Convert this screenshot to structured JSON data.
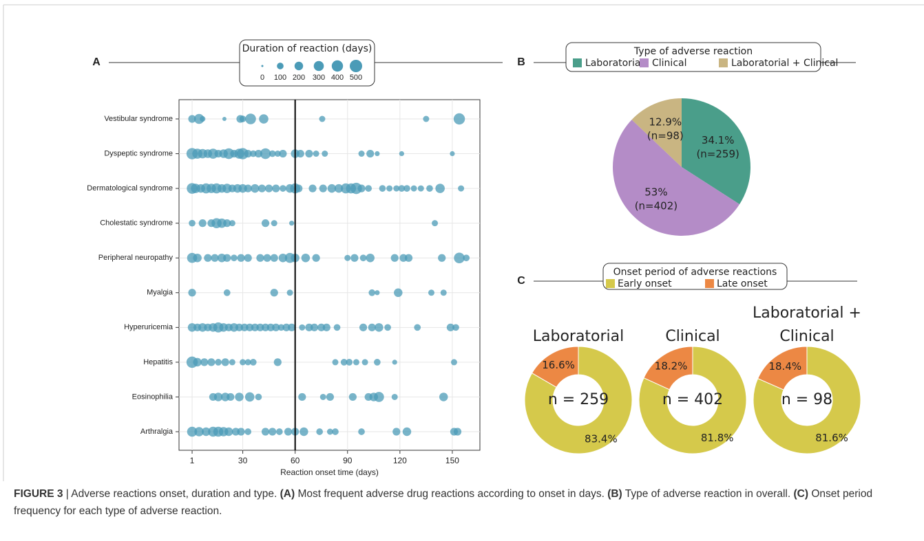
{
  "chart_data": [
    {
      "type": "bubble",
      "panel": "A",
      "legend_title": "Duration of reaction (days)",
      "size_ticks": [
        0,
        100,
        200,
        300,
        400,
        500
      ],
      "categories": [
        "Vestibular syndrome",
        "Dyspeptic syndrome",
        "Dermatological syndrome",
        "Cholestatic syndrome",
        "Peripheral neuropathy",
        "Myalgia",
        "Hyperuricemia",
        "Hepatitis",
        "Eosinophilia",
        "Arthralgia"
      ],
      "rows": [
        {
          "x": [
            1,
            5,
            7,
            19.5,
            28.6,
            30,
            34.5,
            42,
            75.5,
            135,
            154
          ],
          "sizes": [
            150,
            300,
            60,
            20,
            150,
            100,
            350,
            250,
            80,
            80,
            400
          ]
        },
        {
          "x": [
            1,
            4,
            7,
            10,
            13,
            16,
            19,
            22,
            25,
            28,
            30,
            33,
            36,
            39,
            43,
            47,
            50,
            53,
            60,
            63,
            68,
            72,
            77,
            98,
            103,
            107,
            121,
            150
          ],
          "sizes": [
            400,
            300,
            250,
            200,
            300,
            150,
            200,
            350,
            150,
            300,
            400,
            150,
            100,
            150,
            350,
            100,
            80,
            150,
            200,
            150,
            150,
            80,
            80,
            80,
            150,
            40,
            40,
            40
          ]
        },
        {
          "x": [
            1,
            3,
            6,
            9,
            12,
            15,
            18,
            21,
            24,
            27,
            30,
            33,
            37,
            41,
            45,
            49,
            53,
            57,
            60,
            62,
            70,
            76,
            81,
            85,
            89,
            92,
            95,
            98,
            102,
            110,
            114,
            118,
            121,
            124,
            128,
            132,
            137,
            143,
            155
          ],
          "sizes": [
            350,
            250,
            200,
            300,
            250,
            300,
            200,
            250,
            150,
            200,
            200,
            150,
            200,
            150,
            150,
            150,
            100,
            200,
            300,
            150,
            150,
            150,
            200,
            200,
            300,
            300,
            400,
            150,
            100,
            100,
            80,
            80,
            100,
            100,
            80,
            80,
            100,
            250,
            80
          ]
        },
        {
          "x": [
            1,
            7,
            12,
            15,
            18,
            21,
            24,
            43,
            48,
            58,
            140
          ],
          "sizes": [
            100,
            150,
            150,
            300,
            250,
            150,
            80,
            150,
            80,
            40,
            80
          ]
        },
        {
          "x": [
            1,
            4,
            10,
            14,
            18,
            21,
            25,
            29,
            33,
            40,
            44,
            48,
            53,
            57,
            60,
            66,
            72,
            90,
            94,
            99,
            103,
            117,
            122,
            125,
            144,
            154,
            158
          ],
          "sizes": [
            300,
            200,
            150,
            150,
            200,
            150,
            100,
            150,
            150,
            150,
            150,
            150,
            200,
            300,
            200,
            200,
            150,
            80,
            150,
            100,
            200,
            150,
            150,
            150,
            150,
            350,
            100
          ]
        },
        {
          "x": [
            1,
            21,
            48,
            57,
            104,
            107,
            119,
            138,
            145
          ],
          "sizes": [
            150,
            100,
            150,
            80,
            100,
            40,
            200,
            80,
            80
          ]
        },
        {
          "x": [
            1,
            4,
            7,
            10,
            13,
            16,
            19,
            22,
            25,
            28,
            31,
            34,
            37,
            40,
            43,
            46,
            49,
            52,
            55,
            58,
            64,
            68,
            71,
            75,
            78,
            84,
            99,
            104,
            108,
            113,
            130,
            149,
            152
          ],
          "sizes": [
            200,
            150,
            200,
            150,
            200,
            300,
            200,
            150,
            200,
            150,
            150,
            150,
            150,
            150,
            150,
            150,
            150,
            100,
            150,
            150,
            80,
            150,
            150,
            150,
            150,
            100,
            150,
            150,
            200,
            100,
            100,
            150,
            100
          ]
        },
        {
          "x": [
            1,
            4,
            8,
            12,
            16,
            20,
            24,
            30,
            33,
            36,
            50,
            83,
            88,
            91,
            95,
            100,
            107,
            117,
            151
          ],
          "sizes": [
            400,
            200,
            150,
            150,
            100,
            150,
            80,
            80,
            80,
            100,
            150,
            80,
            100,
            100,
            80,
            80,
            100,
            40,
            80
          ]
        },
        {
          "x": [
            13,
            16,
            20,
            23,
            28,
            34,
            39,
            64,
            76,
            80,
            93,
            102,
            105,
            108,
            117,
            145
          ],
          "sizes": [
            150,
            200,
            200,
            150,
            200,
            250,
            100,
            150,
            80,
            150,
            150,
            150,
            200,
            300,
            80,
            200
          ]
        },
        {
          "x": [
            1,
            5,
            9,
            13,
            16,
            19,
            22,
            26,
            29,
            33,
            43,
            47,
            51,
            56,
            60,
            65,
            74,
            80,
            83,
            98,
            118,
            124,
            151,
            153
          ],
          "sizes": [
            300,
            250,
            200,
            300,
            300,
            250,
            200,
            150,
            150,
            100,
            150,
            150,
            100,
            150,
            150,
            200,
            100,
            80,
            100,
            100,
            150,
            200,
            150,
            150
          ]
        }
      ],
      "xlim": [
        -6.5,
        165.8
      ],
      "xticks": [
        1,
        30,
        60,
        90,
        120,
        150
      ],
      "xlabel": "Reaction onset time (days)",
      "reference_line": 60,
      "color": "#4b9bb7",
      "grid": true
    },
    {
      "type": "pie",
      "panel": "B",
      "legend_title": "Type of adverse reaction",
      "categories": [
        "Laboratorial",
        "Clinical",
        "Laboratorial + Clinical"
      ],
      "values": [
        34.1,
        53,
        12.9
      ],
      "value_labels": [
        "34.1%",
        "53%",
        "12.9%"
      ],
      "count_labels": [
        "(n=259)",
        "(n=402)",
        "(n=98)"
      ],
      "colors": [
        "#4a9e8a",
        "#b48cc7",
        "#c9b582"
      ]
    },
    {
      "type": "donut",
      "panel": "C",
      "legend_title": "Onset period of adverse reactions",
      "categories": [
        "Laboratorial",
        "Clinical",
        "Laboratorial + Clinical"
      ],
      "center_labels": [
        "n = 259",
        "n = 402",
        "n = 98"
      ],
      "series": [
        {
          "name": "Early onset",
          "color": "#d5c94b",
          "values": [
            83.4,
            81.8,
            81.6
          ],
          "value_labels": [
            "83.4%",
            "81.8%",
            "81.6%"
          ]
        },
        {
          "name": "Late onset",
          "color": "#ec8844",
          "values": [
            16.6,
            18.2,
            18.4
          ],
          "value_labels": [
            "16.6%",
            "18.2%",
            "18.4%"
          ]
        }
      ]
    }
  ],
  "caption": {
    "figure": "FIGURE 3",
    "separator": "|",
    "intro": "Adverse reactions onset, duration and type.",
    "parts": [
      {
        "key": "(A)",
        "text": "Most frequent adverse drug reactions according to onset in days."
      },
      {
        "key": "(B)",
        "text": "Type of adverse reaction in overall."
      },
      {
        "key": "(C)",
        "text": "Onset period frequency for each type of adverse reaction."
      }
    ]
  }
}
